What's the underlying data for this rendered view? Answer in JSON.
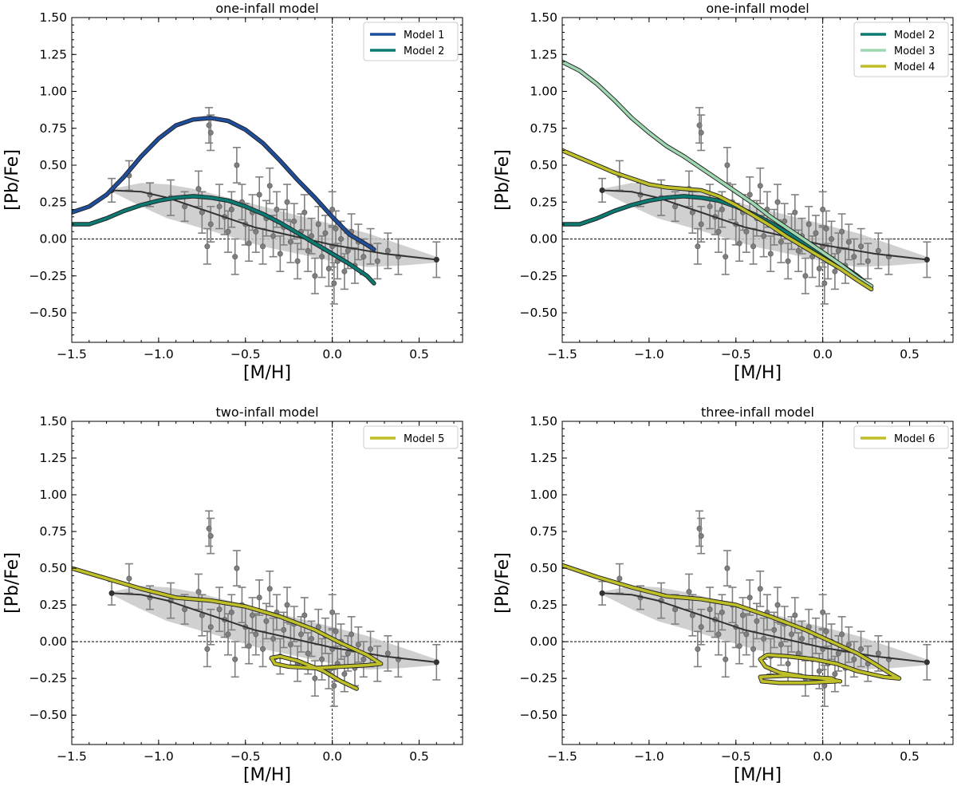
{
  "colors": {
    "model1": "#1f4e9c",
    "model2": "#0a7a72",
    "model3": "#9fd8b0",
    "model4": "#bfbf28",
    "model5": "#bfbf28",
    "model6": "#bfbf28",
    "median": "#333333",
    "band": "#c8c8c8",
    "points": "#7f7f7f"
  },
  "chart_data": [
    {
      "type": "line",
      "title": "one-infall model",
      "xlabel": "[M/H]",
      "ylabel": "[Pb/Fe]",
      "xlim": [
        -1.5,
        0.75
      ],
      "ylim": [
        -0.7,
        1.5
      ],
      "xticks": [
        "−1.5",
        "−1.0",
        "−0.5",
        "0.0",
        "0.5"
      ],
      "yticks": [
        "−0.50",
        "−0.25",
        "0.00",
        "0.25",
        "0.50",
        "0.75",
        "1.00",
        "1.25",
        "1.50"
      ],
      "legend_position": "top-right",
      "series": [
        {
          "name": "Model 1",
          "color_key": "model1",
          "x": [
            -1.5,
            -1.4,
            -1.3,
            -1.2,
            -1.1,
            -1.0,
            -0.9,
            -0.8,
            -0.7,
            -0.6,
            -0.5,
            -0.4,
            -0.3,
            -0.2,
            -0.1,
            0.0,
            0.1,
            0.2,
            0.24
          ],
          "y": [
            0.18,
            0.22,
            0.3,
            0.42,
            0.56,
            0.68,
            0.77,
            0.81,
            0.82,
            0.8,
            0.74,
            0.65,
            0.53,
            0.4,
            0.28,
            0.15,
            0.03,
            -0.04,
            -0.07
          ]
        },
        {
          "name": "Model 2",
          "color_key": "model2",
          "x": [
            -1.5,
            -1.4,
            -1.3,
            -1.2,
            -1.1,
            -1.0,
            -0.9,
            -0.8,
            -0.7,
            -0.6,
            -0.5,
            -0.4,
            -0.3,
            -0.2,
            -0.1,
            0.0,
            0.1,
            0.2,
            0.24
          ],
          "y": [
            0.1,
            0.1,
            0.14,
            0.19,
            0.23,
            0.26,
            0.28,
            0.29,
            0.28,
            0.26,
            0.22,
            0.17,
            0.11,
            0.04,
            -0.03,
            -0.1,
            -0.17,
            -0.25,
            -0.3
          ]
        }
      ]
    },
    {
      "type": "line",
      "title": "one-infall model",
      "xlabel": "[M/H]",
      "ylabel": "[Pb/Fe]",
      "xlim": [
        -1.5,
        0.75
      ],
      "ylim": [
        -0.7,
        1.5
      ],
      "xticks": [
        "−1.5",
        "−1.0",
        "−0.5",
        "0.0",
        "0.5"
      ],
      "yticks": [
        "−0.50",
        "−0.25",
        "0.00",
        "0.25",
        "0.50",
        "0.75",
        "1.00",
        "1.25",
        "1.50"
      ],
      "legend_position": "top-right",
      "series": [
        {
          "name": "Model 2",
          "color_key": "model2",
          "x": [
            -1.5,
            -1.4,
            -1.3,
            -1.2,
            -1.1,
            -1.0,
            -0.9,
            -0.8,
            -0.7,
            -0.6,
            -0.5,
            -0.4,
            -0.3,
            -0.2,
            -0.1,
            0.0,
            0.1,
            0.2,
            0.27
          ],
          "y": [
            0.1,
            0.1,
            0.14,
            0.19,
            0.23,
            0.26,
            0.28,
            0.29,
            0.28,
            0.26,
            0.22,
            0.17,
            0.11,
            0.04,
            -0.03,
            -0.1,
            -0.17,
            -0.25,
            -0.32
          ]
        },
        {
          "name": "Model 3",
          "color_key": "model3",
          "x": [
            -1.5,
            -1.4,
            -1.3,
            -1.2,
            -1.1,
            -1.0,
            -0.9,
            -0.8,
            -0.7,
            -0.6,
            -0.5,
            -0.4,
            -0.3,
            -0.2,
            -0.1,
            0.0,
            0.1,
            0.2,
            0.28
          ],
          "y": [
            1.2,
            1.14,
            1.05,
            0.94,
            0.82,
            0.72,
            0.63,
            0.56,
            0.48,
            0.4,
            0.32,
            0.24,
            0.15,
            0.07,
            -0.01,
            -0.09,
            -0.17,
            -0.26,
            -0.32
          ]
        },
        {
          "name": "Model 4",
          "color_key": "model4",
          "x": [
            -1.5,
            -1.4,
            -1.3,
            -1.2,
            -1.1,
            -1.0,
            -0.9,
            -0.8,
            -0.7,
            -0.6,
            -0.5,
            -0.4,
            -0.3,
            -0.2,
            -0.1,
            0.0,
            0.1,
            0.2,
            0.28
          ],
          "y": [
            0.6,
            0.55,
            0.5,
            0.45,
            0.41,
            0.37,
            0.35,
            0.34,
            0.33,
            0.29,
            0.23,
            0.16,
            0.09,
            0.01,
            -0.06,
            -0.13,
            -0.2,
            -0.28,
            -0.34
          ]
        }
      ]
    },
    {
      "type": "line",
      "title": "two-infall model",
      "xlabel": "[M/H]",
      "ylabel": "[Pb/Fe]",
      "xlim": [
        -1.5,
        0.75
      ],
      "ylim": [
        -0.7,
        1.5
      ],
      "xticks": [
        "−1.5",
        "−1.0",
        "−0.5",
        "0.0",
        "0.5"
      ],
      "yticks": [
        "−0.50",
        "−0.25",
        "0.00",
        "0.25",
        "0.50",
        "0.75",
        "1.00",
        "1.25",
        "1.50"
      ],
      "legend_position": "top-right",
      "series": [
        {
          "name": "Model 5",
          "color_key": "model5",
          "x": [
            -1.5,
            -1.3,
            -1.1,
            -0.9,
            -0.7,
            -0.5,
            -0.3,
            -0.1,
            0.05,
            0.2,
            0.28,
            0.2,
            0.05,
            -0.1,
            -0.25,
            -0.33,
            -0.35,
            -0.3,
            -0.2,
            -0.05,
            0.05,
            0.14
          ],
          "y": [
            0.5,
            0.43,
            0.36,
            0.3,
            0.28,
            0.24,
            0.17,
            0.08,
            -0.01,
            -0.09,
            -0.15,
            -0.16,
            -0.17,
            -0.18,
            -0.17,
            -0.15,
            -0.11,
            -0.1,
            -0.13,
            -0.2,
            -0.27,
            -0.32
          ]
        }
      ]
    },
    {
      "type": "line",
      "title": "three-infall model",
      "xlabel": "[M/H]",
      "ylabel": "[Pb/Fe]",
      "xlim": [
        -1.5,
        0.75
      ],
      "ylim": [
        -0.7,
        1.5
      ],
      "xticks": [
        "−1.5",
        "−1.0",
        "−0.5",
        "0.0",
        "0.5"
      ],
      "yticks": [
        "−0.50",
        "−0.25",
        "0.00",
        "0.25",
        "0.50",
        "0.75",
        "1.00",
        "1.25",
        "1.50"
      ],
      "legend_position": "top-right",
      "series": [
        {
          "name": "Model 6",
          "color_key": "model6",
          "x": [
            -1.5,
            -1.3,
            -1.1,
            -0.9,
            -0.7,
            -0.5,
            -0.3,
            -0.1,
            0.05,
            0.2,
            0.3,
            0.38,
            0.44,
            0.35,
            0.2,
            0.08,
            -0.05,
            -0.2,
            -0.32,
            -0.36,
            -0.33,
            -0.25,
            -0.1,
            0.05,
            0.08,
            -0.1,
            -0.25,
            -0.35,
            -0.36,
            -0.2,
            0.0,
            0.1
          ],
          "y": [
            0.52,
            0.44,
            0.37,
            0.31,
            0.29,
            0.25,
            0.17,
            0.08,
            0.0,
            -0.08,
            -0.15,
            -0.21,
            -0.25,
            -0.24,
            -0.2,
            -0.15,
            -0.12,
            -0.1,
            -0.09,
            -0.12,
            -0.17,
            -0.21,
            -0.24,
            -0.25,
            -0.27,
            -0.28,
            -0.28,
            -0.27,
            -0.24,
            -0.23,
            -0.25,
            -0.27
          ]
        }
      ]
    }
  ],
  "observations": {
    "median_line": {
      "x": [
        -1.27,
        -1.1,
        -0.95,
        -0.85,
        -0.75,
        -0.6,
        -0.45,
        -0.3,
        -0.15,
        0.0,
        0.15,
        0.3,
        0.45,
        0.6
      ],
      "y": [
        0.33,
        0.32,
        0.28,
        0.24,
        0.2,
        0.14,
        0.08,
        0.04,
        0.0,
        -0.04,
        -0.07,
        -0.1,
        -0.12,
        -0.14
      ]
    },
    "band": {
      "x": [
        -1.27,
        -1.1,
        -0.95,
        -0.8,
        -0.6,
        -0.4,
        -0.2,
        0.0,
        0.2,
        0.4,
        0.6
      ],
      "upper": [
        0.34,
        0.38,
        0.37,
        0.34,
        0.28,
        0.22,
        0.16,
        0.1,
        0.04,
        -0.04,
        -0.12
      ],
      "lower": [
        0.32,
        0.22,
        0.14,
        0.09,
        0.02,
        -0.05,
        -0.1,
        -0.15,
        -0.19,
        -0.18,
        -0.16
      ]
    },
    "points": [
      {
        "x": -1.27,
        "y": 0.33,
        "e": 0.08
      },
      {
        "x": -1.17,
        "y": 0.43,
        "e": 0.1
      },
      {
        "x": -1.05,
        "y": 0.3,
        "e": 0.08
      },
      {
        "x": -0.93,
        "y": 0.28,
        "e": 0.12
      },
      {
        "x": -0.85,
        "y": 0.22,
        "e": 0.1
      },
      {
        "x": -0.77,
        "y": 0.34,
        "e": 0.12
      },
      {
        "x": -0.75,
        "y": 0.18,
        "e": 0.14
      },
      {
        "x": -0.71,
        "y": 0.77,
        "e": 0.12
      },
      {
        "x": -0.7,
        "y": 0.72,
        "e": 0.12
      },
      {
        "x": -0.72,
        "y": -0.05,
        "e": 0.12
      },
      {
        "x": -0.7,
        "y": 0.1,
        "e": 0.12
      },
      {
        "x": -0.65,
        "y": 0.22,
        "e": 0.15
      },
      {
        "x": -0.62,
        "y": 0.15,
        "e": 0.12
      },
      {
        "x": -0.6,
        "y": 0.05,
        "e": 0.14
      },
      {
        "x": -0.58,
        "y": 0.2,
        "e": 0.12
      },
      {
        "x": -0.56,
        "y": -0.12,
        "e": 0.12
      },
      {
        "x": -0.55,
        "y": 0.5,
        "e": 0.12
      },
      {
        "x": -0.52,
        "y": 0.25,
        "e": 0.12
      },
      {
        "x": -0.5,
        "y": 0.1,
        "e": 0.14
      },
      {
        "x": -0.48,
        "y": -0.03,
        "e": 0.12
      },
      {
        "x": -0.46,
        "y": 0.18,
        "e": 0.12
      },
      {
        "x": -0.44,
        "y": 0.05,
        "e": 0.14
      },
      {
        "x": -0.42,
        "y": 0.3,
        "e": 0.12
      },
      {
        "x": -0.4,
        "y": -0.05,
        "e": 0.12
      },
      {
        "x": -0.38,
        "y": 0.14,
        "e": 0.12
      },
      {
        "x": -0.36,
        "y": 0.36,
        "e": 0.12
      },
      {
        "x": -0.34,
        "y": 0.02,
        "e": 0.14
      },
      {
        "x": -0.32,
        "y": 0.2,
        "e": 0.12
      },
      {
        "x": -0.3,
        "y": -0.1,
        "e": 0.12
      },
      {
        "x": -0.28,
        "y": 0.08,
        "e": 0.12
      },
      {
        "x": -0.26,
        "y": 0.25,
        "e": 0.12
      },
      {
        "x": -0.24,
        "y": -0.02,
        "e": 0.14
      },
      {
        "x": -0.22,
        "y": 0.12,
        "e": 0.12
      },
      {
        "x": -0.2,
        "y": -0.15,
        "e": 0.12
      },
      {
        "x": -0.18,
        "y": 0.05,
        "e": 0.12
      },
      {
        "x": -0.16,
        "y": 0.18,
        "e": 0.12
      },
      {
        "x": -0.14,
        "y": -0.08,
        "e": 0.14
      },
      {
        "x": -0.12,
        "y": 0.02,
        "e": 0.12
      },
      {
        "x": -0.1,
        "y": -0.25,
        "e": 0.12
      },
      {
        "x": -0.08,
        "y": 0.1,
        "e": 0.12
      },
      {
        "x": -0.06,
        "y": -0.12,
        "e": 0.14
      },
      {
        "x": -0.04,
        "y": 0.04,
        "e": 0.12
      },
      {
        "x": -0.02,
        "y": -0.2,
        "e": 0.12
      },
      {
        "x": 0.0,
        "y": 0.2,
        "e": 0.12
      },
      {
        "x": 0.0,
        "y": -0.05,
        "e": 0.14
      },
      {
        "x": 0.01,
        "y": -0.3,
        "e": 0.14
      },
      {
        "x": 0.02,
        "y": 0.07,
        "e": 0.12
      },
      {
        "x": 0.03,
        "y": -0.15,
        "e": 0.12
      },
      {
        "x": 0.05,
        "y": 0.0,
        "e": 0.12
      },
      {
        "x": 0.07,
        "y": -0.22,
        "e": 0.12
      },
      {
        "x": 0.09,
        "y": -0.08,
        "e": 0.12
      },
      {
        "x": 0.11,
        "y": 0.05,
        "e": 0.12
      },
      {
        "x": 0.13,
        "y": -0.18,
        "e": 0.12
      },
      {
        "x": 0.15,
        "y": -0.02,
        "e": 0.12
      },
      {
        "x": 0.18,
        "y": -0.12,
        "e": 0.12
      },
      {
        "x": 0.22,
        "y": -0.05,
        "e": 0.12
      },
      {
        "x": 0.26,
        "y": -0.15,
        "e": 0.12
      },
      {
        "x": 0.32,
        "y": -0.08,
        "e": 0.12
      },
      {
        "x": 0.38,
        "y": -0.12,
        "e": 0.12
      },
      {
        "x": 0.6,
        "y": -0.14,
        "e": 0.12
      }
    ]
  }
}
